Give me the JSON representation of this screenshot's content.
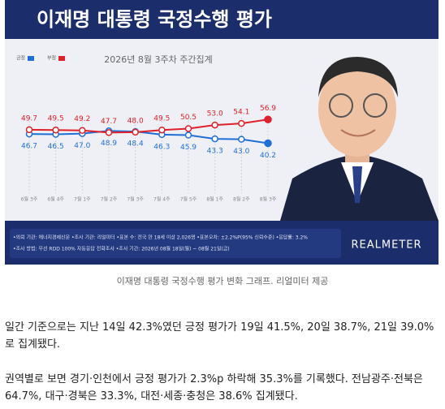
{
  "chart_data": {
    "type": "line",
    "title": "이재명 대통령 국정수행 평가",
    "subtitle": "2026년 8월 3주차 주간집계",
    "categories": [
      "6월 3주",
      "6월 4주",
      "7월 1주",
      "7월 2주",
      "7월 3주",
      "7월 4주",
      "7월 5주",
      "8월 1주",
      "8월 2주",
      "8월 3주"
    ],
    "series": [
      {
        "name": "긍정",
        "color": "#1f6fd6",
        "values": [
          46.7,
          46.5,
          47.0,
          48.9,
          48.4,
          46.3,
          45.9,
          43.3,
          43.0,
          40.2
        ],
        "value_labels": [
          "46.7",
          "46.5",
          "47.0",
          "48.9",
          "48.4",
          "46.3",
          "45.9",
          "43.3",
          "43.0",
          "40.2"
        ]
      },
      {
        "name": "부정",
        "color": "#e0202a",
        "values": [
          49.7,
          49.5,
          49.2,
          47.7,
          48.0,
          49.5,
          50.5,
          53.0,
          54.1,
          56.9
        ],
        "value_labels": [
          "49.7",
          "49.5",
          "49.2",
          "47.7",
          "48.0",
          "49.5",
          "50.5",
          "53.0",
          "54.1",
          "56.9"
        ]
      }
    ],
    "notes": [
      "•의뢰 기관: 에너지경제신문 •조사 기관: 리얼미터 •표본 수: 전국 만 18세 이상 2,026명 •표본오차: ±2.2%P(95% 신뢰수준) •응답률: 3.2%",
      "•조사 방법: 무선 RDD 100% 자동응답 전화조사 •조사 기간: 2026년 08월 18일(월) ~ 08월 21일(금)"
    ],
    "brand": "REALMETER"
  },
  "caption": "이재명 대통령 국정수행 평가 변화 그래프. 리얼미터 제공",
  "paragraphs": [
    "일간 기준으로는 지난 14일 42.3%였던 긍정 평가가 19일 41.5%, 20일 38.7%, 21일 39.0%로 집계됐다.",
    "권역별로 보면 경기·인천에서 긍정 평가가 2.3%p 하락해 35.3%를 기록했다. 전남광주·전북은 64.7%, 대구·경북은 33.3%, 대전·세종·충청은 38.6% 집계됐다."
  ]
}
